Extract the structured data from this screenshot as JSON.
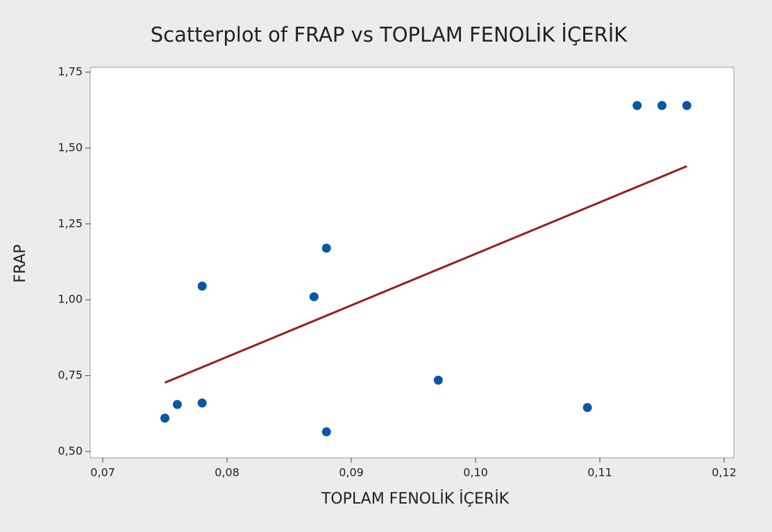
{
  "chart_data": {
    "type": "scatter",
    "title": "Scatterplot of FRAP vs TOPLAM FENOLİK İÇERİK",
    "x_label": "TOPLAM FENOLİK İÇERİK",
    "y_label": "FRAP",
    "x": [
      0.075,
      0.076,
      0.078,
      0.078,
      0.087,
      0.088,
      0.088,
      0.097,
      0.109,
      0.113,
      0.115,
      0.117
    ],
    "values": [
      0.61,
      0.655,
      0.66,
      1.045,
      1.01,
      1.17,
      0.565,
      0.735,
      0.645,
      1.64,
      1.64,
      1.64
    ],
    "color": "#0b56a4",
    "fit_line": {
      "x": [
        0.075,
        0.117
      ],
      "values": [
        0.727,
        1.44
      ],
      "color": "#9b1b1b"
    },
    "xlim": [
      0.07,
      0.12
    ],
    "xticks": [
      {
        "value": 0.07,
        "label": "0,07"
      },
      {
        "value": 0.08,
        "label": "0,08"
      },
      {
        "value": 0.09,
        "label": "0,09"
      },
      {
        "value": 0.1,
        "label": "0,10"
      },
      {
        "value": 0.11,
        "label": "0,11"
      },
      {
        "value": 0.12,
        "label": "0,12"
      }
    ],
    "ylim": [
      0.5,
      1.75
    ],
    "yticks": [
      {
        "value": 0.5,
        "label": "0,50"
      },
      {
        "value": 0.75,
        "label": "0,75"
      },
      {
        "value": 1.0,
        "label": "1,00"
      },
      {
        "value": 1.25,
        "label": "1,25"
      },
      {
        "value": 1.5,
        "label": "1,50"
      },
      {
        "value": 1.75,
        "label": "1,75"
      }
    ]
  }
}
